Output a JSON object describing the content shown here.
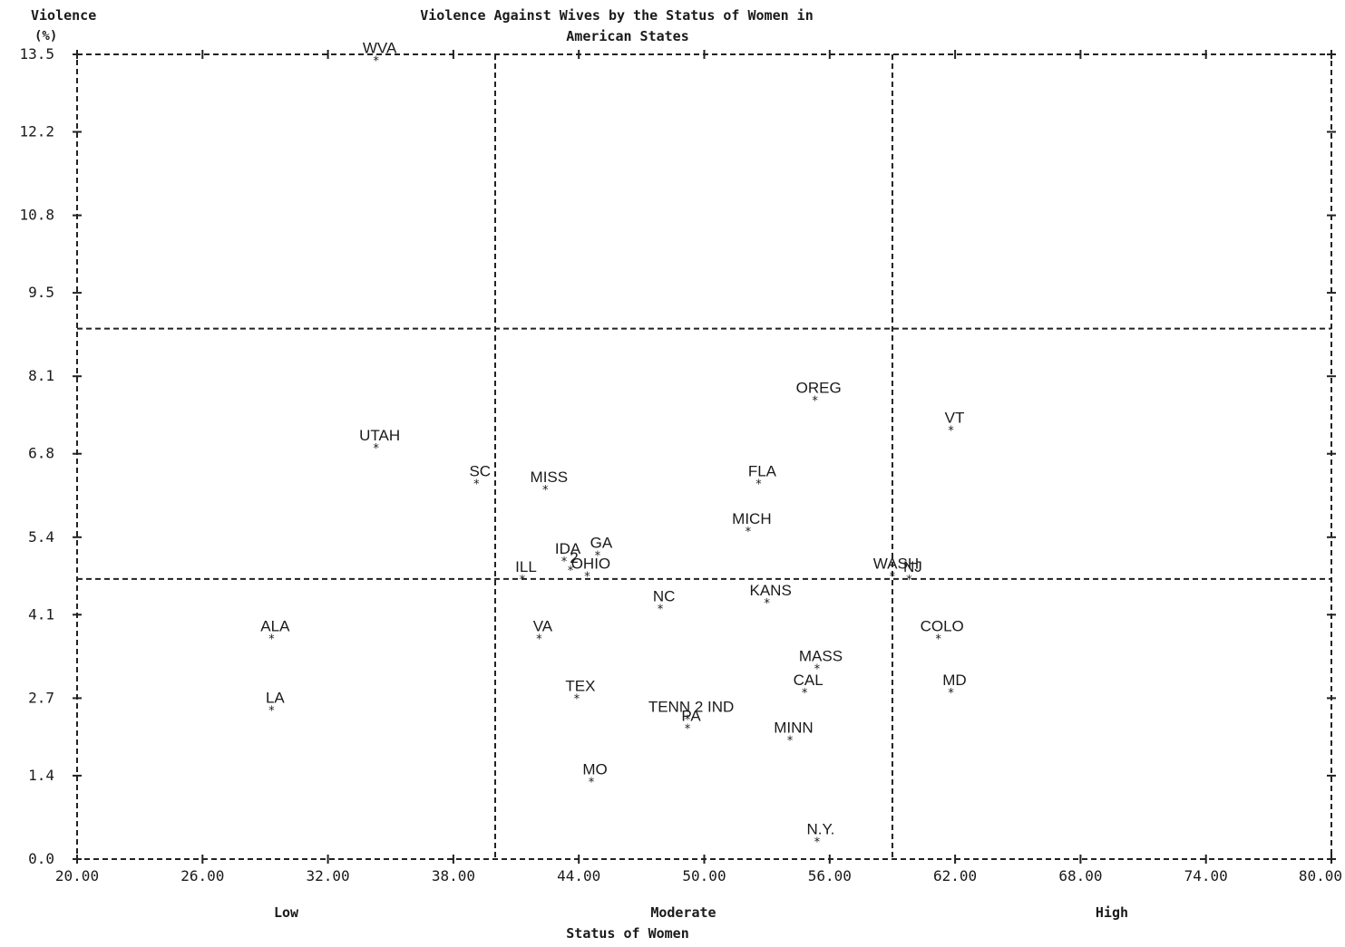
{
  "chart_data": {
    "type": "scatter",
    "title": "Violence Against Wives by the Status of Women in",
    "subtitle": "American States",
    "ylabel": "Violence",
    "ylabel_unit": "(%)",
    "xlabel": "Status of Women",
    "xlim": [
      20,
      80
    ],
    "ylim": [
      0,
      13.5
    ],
    "x_ticks": [
      20,
      26,
      32,
      38,
      44,
      50,
      56,
      62,
      68,
      74,
      80
    ],
    "x_tick_labels": [
      "20.00",
      "26.00",
      "32.00",
      "38.00",
      "44.00",
      "50.00",
      "56.00",
      "62.00",
      "68.00",
      "74.00",
      "80.00"
    ],
    "y_ticks": [
      0.0,
      1.4,
      2.7,
      4.1,
      5.4,
      6.8,
      8.1,
      9.5,
      10.8,
      12.2,
      13.5
    ],
    "y_tick_labels": [
      "0.0",
      "1.4",
      "2.7",
      "4.1",
      "5.4",
      "6.8",
      "8.1",
      "9.5",
      "10.8",
      "12.2",
      "13.5"
    ],
    "x_dividers": [
      40,
      59
    ],
    "y_dividers": [
      4.7,
      8.9
    ],
    "category_labels": [
      {
        "label": "Low",
        "x": 30
      },
      {
        "label": "Moderate",
        "x": 49
      },
      {
        "label": "High",
        "x": 69.5
      }
    ],
    "grid": false,
    "points": [
      {
        "label": "WVA",
        "x": 34.3,
        "y": 13.4
      },
      {
        "label": "UTAH",
        "x": 34.3,
        "y": 6.9
      },
      {
        "label": "SC",
        "x": 39.1,
        "y": 6.3
      },
      {
        "label": "ALA",
        "x": 29.3,
        "y": 3.7
      },
      {
        "label": "LA",
        "x": 29.3,
        "y": 2.5
      },
      {
        "label": "MISS",
        "x": 42.4,
        "y": 6.2
      },
      {
        "label": "GA",
        "x": 44.9,
        "y": 5.1
      },
      {
        "label": "IDA",
        "x": 43.3,
        "y": 5.0
      },
      {
        "label": "2",
        "x": 43.6,
        "y": 4.85
      },
      {
        "label": "OHIO",
        "x": 44.4,
        "y": 4.75
      },
      {
        "label": "ILL",
        "x": 41.3,
        "y": 4.7
      },
      {
        "label": "NC",
        "x": 47.9,
        "y": 4.2
      },
      {
        "label": "FLA",
        "x": 52.6,
        "y": 6.3
      },
      {
        "label": "MICH",
        "x": 52.1,
        "y": 5.5
      },
      {
        "label": "OREG",
        "x": 55.3,
        "y": 7.7
      },
      {
        "label": "KANS",
        "x": 53.0,
        "y": 4.3
      },
      {
        "label": "MASS",
        "x": 55.4,
        "y": 3.2
      },
      {
        "label": "CAL",
        "x": 54.8,
        "y": 2.8
      },
      {
        "label": "VA",
        "x": 42.1,
        "y": 3.7
      },
      {
        "label": "TEX",
        "x": 43.9,
        "y": 2.7
      },
      {
        "label": "TENN 2 IND",
        "x": 49.2,
        "y": 2.35
      },
      {
        "label": "PA",
        "x": 49.2,
        "y": 2.2
      },
      {
        "label": "MINN",
        "x": 54.1,
        "y": 2.0
      },
      {
        "label": "MO",
        "x": 44.6,
        "y": 1.3
      },
      {
        "label": "N.Y.",
        "x": 55.4,
        "y": 0.3
      },
      {
        "label": "WASH",
        "x": 59.0,
        "y": 4.75
      },
      {
        "label": "NJ",
        "x": 59.8,
        "y": 4.7
      },
      {
        "label": "VT",
        "x": 61.8,
        "y": 7.2
      },
      {
        "label": "COLO",
        "x": 61.2,
        "y": 3.7
      },
      {
        "label": "MD",
        "x": 61.8,
        "y": 2.8
      }
    ]
  }
}
